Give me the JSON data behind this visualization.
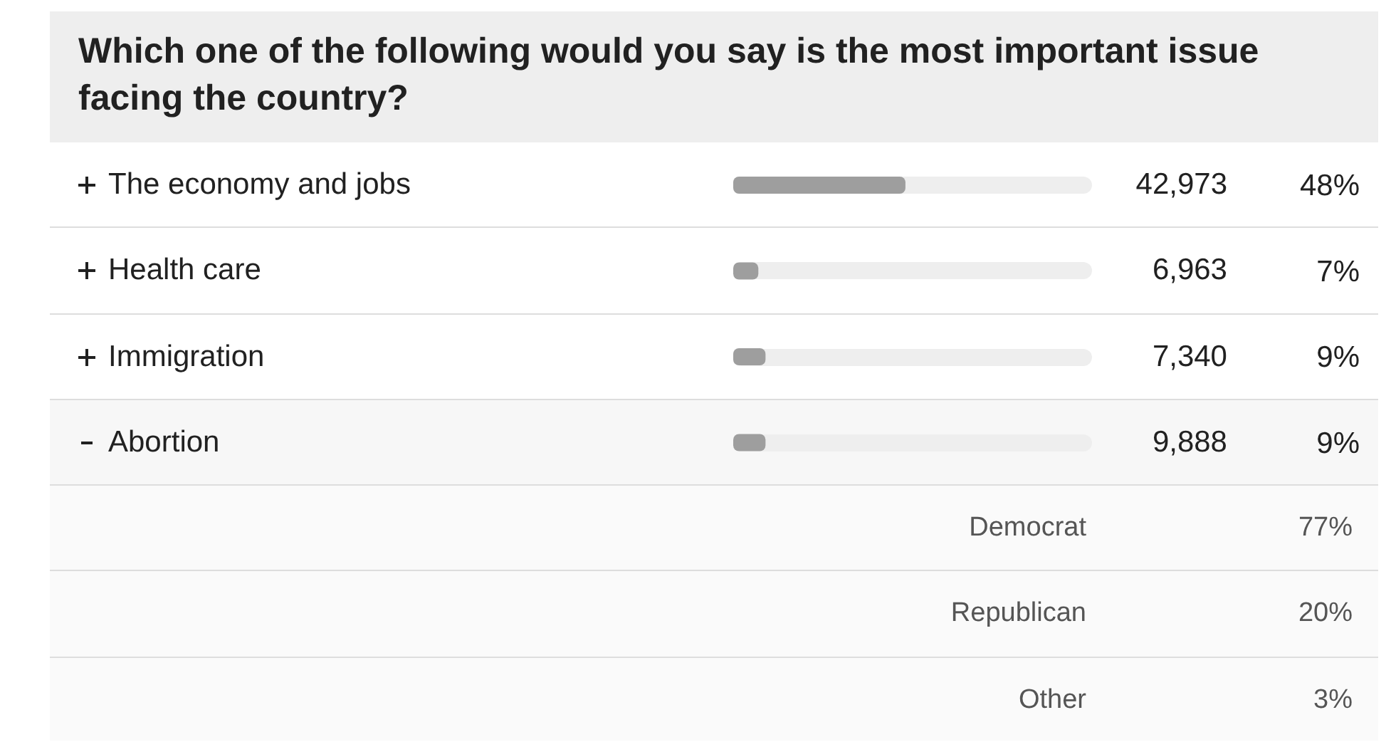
{
  "chart_data": [
    {
      "type": "bar",
      "title": "Which one of the following would you say is the most important issue facing the country?",
      "orientation": "horizontal",
      "categories": [
        "The economy and jobs",
        "Health care",
        "Immigration",
        "Abortion"
      ],
      "values": [
        48,
        7,
        9,
        9
      ],
      "color": "#9e9e9e",
      "xlim": [
        0,
        100
      ],
      "tick_labels": false,
      "value_labels": [
        "48%",
        "7%",
        "9%",
        "9%"
      ],
      "annotations": [
        "42,973",
        "6,963",
        "7,340",
        "9,888"
      ]
    },
    {
      "type": "other",
      "categories": [
        "Democrat",
        "Republican",
        "Other"
      ],
      "value_labels": [
        "77%",
        "20%",
        "3%"
      ]
    }
  ]
}
